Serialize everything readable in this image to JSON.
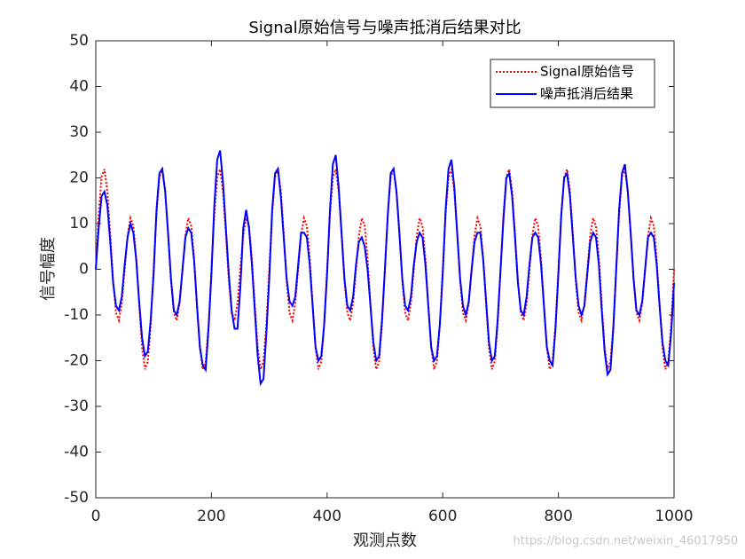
{
  "chart_data": {
    "type": "line",
    "title": "Signal原始信号与噪声抵消后结果对比",
    "xlabel": "观测点数",
    "ylabel": "信号幅度",
    "watermark": "https://blog.csdn.net/weixin_46017950",
    "legend": "northeast",
    "xlim": [
      0,
      1000
    ],
    "xticks": [
      0,
      200,
      400,
      600,
      800,
      1000
    ],
    "ylim": [
      -50,
      50
    ],
    "yticks": [
      -50,
      -40,
      -30,
      -20,
      -10,
      0,
      10,
      20,
      30,
      40,
      50
    ],
    "x": [
      0,
      5,
      10,
      15,
      20,
      25,
      30,
      35,
      40,
      45,
      50,
      55,
      60,
      65,
      70,
      75,
      80,
      85,
      90,
      95,
      100,
      105,
      110,
      115,
      120,
      125,
      130,
      135,
      140,
      145,
      150,
      155,
      160,
      165,
      170,
      175,
      180,
      185,
      190,
      195,
      200,
      205,
      210,
      215,
      220,
      225,
      230,
      235,
      240,
      245,
      250,
      255,
      260,
      265,
      270,
      275,
      280,
      285,
      290,
      295,
      300,
      305,
      310,
      315,
      320,
      325,
      330,
      335,
      340,
      345,
      350,
      355,
      360,
      365,
      370,
      375,
      380,
      385,
      390,
      395,
      400,
      405,
      410,
      415,
      420,
      425,
      430,
      435,
      440,
      445,
      450,
      455,
      460,
      465,
      470,
      475,
      480,
      485,
      490,
      495,
      500,
      505,
      510,
      515,
      520,
      525,
      530,
      535,
      540,
      545,
      550,
      555,
      560,
      565,
      570,
      575,
      580,
      585,
      590,
      595,
      600,
      605,
      610,
      615,
      620,
      625,
      630,
      635,
      640,
      645,
      650,
      655,
      660,
      665,
      670,
      675,
      680,
      685,
      690,
      695,
      700,
      705,
      710,
      715,
      720,
      725,
      730,
      735,
      740,
      745,
      750,
      755,
      760,
      765,
      770,
      775,
      780,
      785,
      790,
      795,
      800,
      805,
      810,
      815,
      820,
      825,
      830,
      835,
      840,
      845,
      850,
      855,
      860,
      865,
      870,
      875,
      880,
      885,
      890,
      895,
      900,
      905,
      910,
      915,
      920,
      925,
      930,
      935,
      940,
      945,
      950,
      955,
      960,
      965,
      970,
      975,
      980,
      985,
      990,
      995,
      1000
    ],
    "series": [
      {
        "name": "Signal原始信号",
        "color": "#ff0000",
        "linestyle": "dotted",
        "values": [
          0,
          12.1,
          20.2,
          21.9,
          17.1,
          7.7,
          -2.4,
          -9.5,
          -11.2,
          -7.4,
          0,
          7.4,
          11.2,
          9.5,
          2.4,
          -7.7,
          -17.1,
          -21.9,
          -20.2,
          -12.1,
          0,
          12.1,
          20.2,
          21.9,
          17.1,
          7.7,
          -2.4,
          -9.5,
          -11.2,
          -7.4,
          0,
          7.4,
          11.2,
          9.5,
          2.4,
          -7.7,
          -17.1,
          -21.9,
          -20.2,
          -12.1,
          0,
          12.1,
          20.2,
          21.9,
          17.1,
          7.7,
          -2.4,
          -9.5,
          -11.2,
          -7.4,
          0,
          7.4,
          11.2,
          9.5,
          2.4,
          -7.7,
          -17.1,
          -21.9,
          -20.2,
          -12.1,
          0,
          12.1,
          20.2,
          21.9,
          17.1,
          7.7,
          -2.4,
          -9.5,
          -11.2,
          -7.4,
          0,
          7.4,
          11.2,
          9.5,
          2.4,
          -7.7,
          -17.1,
          -21.9,
          -20.2,
          -12.1,
          0,
          12.1,
          20.2,
          21.9,
          17.1,
          7.7,
          -2.4,
          -9.5,
          -11.2,
          -7.4,
          0,
          7.4,
          11.2,
          9.5,
          2.4,
          -7.7,
          -17.1,
          -21.9,
          -20.2,
          -12.1,
          0,
          12.1,
          20.2,
          21.9,
          17.1,
          7.7,
          -2.4,
          -9.5,
          -11.2,
          -7.4,
          0,
          7.4,
          11.2,
          9.5,
          2.4,
          -7.7,
          -17.1,
          -21.9,
          -20.2,
          -12.1,
          0,
          12.1,
          20.2,
          21.9,
          17.1,
          7.7,
          -2.4,
          -9.5,
          -11.2,
          -7.4,
          0,
          7.4,
          11.2,
          9.5,
          2.4,
          -7.7,
          -17.1,
          -21.9,
          -20.2,
          -12.1,
          0,
          12.1,
          20.2,
          21.9,
          17.1,
          7.7,
          -2.4,
          -9.5,
          -11.2,
          -7.4,
          0,
          7.4,
          11.2,
          9.5,
          2.4,
          -7.7,
          -17.1,
          -21.9,
          -20.2,
          -12.1,
          0,
          12.1,
          20.2,
          21.9,
          17.1,
          7.7,
          -2.4,
          -9.5,
          -11.2,
          -7.4,
          0,
          7.4,
          11.2,
          9.5,
          2.4,
          -7.7,
          -17.1,
          -21.9,
          -20.2,
          -12.1,
          0,
          12.1,
          20.2,
          21.9,
          17.1,
          7.7,
          -2.4,
          -9.5,
          -11.2,
          -7.4,
          0,
          7.4,
          11.2,
          9.5,
          2.4,
          -7.7,
          -17.1,
          -21.9,
          -20.2,
          -12.1,
          0
        ]
      },
      {
        "name": "噪声抵消后结果",
        "color": "#0000ff",
        "linestyle": "solid",
        "values": [
          0,
          9,
          16,
          17,
          14,
          6,
          -3,
          -8,
          -9,
          -6,
          1,
          7,
          10,
          8,
          2,
          -7,
          -15,
          -19,
          -18,
          -11,
          -1,
          13,
          21,
          22,
          17,
          8,
          -2,
          -9,
          -10,
          -7,
          0,
          7,
          9,
          8,
          2,
          -8,
          -17,
          -21,
          -22,
          -13,
          -1,
          14,
          24,
          26,
          19,
          9,
          -1,
          -9,
          -13,
          -13,
          -4,
          9,
          13,
          9,
          1,
          -9,
          -19,
          -25,
          -24,
          -14,
          -2,
          13,
          21,
          22,
          16,
          7,
          -2,
          -7,
          -8,
          -6,
          1,
          8,
          8,
          7,
          1,
          -8,
          -17,
          -20,
          -19,
          -12,
          -1,
          13,
          23,
          25,
          18,
          8,
          -2,
          -8,
          -9,
          -6,
          1,
          6,
          7,
          5,
          0,
          -8,
          -16,
          -20,
          -19,
          -11,
          0,
          12,
          21,
          22,
          17,
          8,
          -2,
          -8,
          -9,
          -6,
          1,
          6,
          8,
          7,
          1,
          -8,
          -17,
          -20,
          -19,
          -12,
          -1,
          13,
          22,
          24,
          18,
          8,
          -2,
          -8,
          -10,
          -7,
          0,
          6,
          8,
          8,
          2,
          -7,
          -16,
          -20,
          -19,
          -11,
          0,
          11,
          20,
          21,
          16,
          7,
          -3,
          -9,
          -10,
          -6,
          1,
          7,
          8,
          7,
          1,
          -8,
          -17,
          -20,
          -21,
          -13,
          -1,
          12,
          20,
          21,
          16,
          7,
          -2,
          -8,
          -10,
          -8,
          -1,
          6,
          8,
          7,
          1,
          -9,
          -18,
          -23,
          -22,
          -13,
          0,
          13,
          21,
          23,
          17,
          8,
          -2,
          -9,
          -10,
          -7,
          0,
          7,
          8,
          7,
          1,
          -8,
          -16,
          -20,
          -21,
          -14,
          -3
        ]
      }
    ]
  }
}
